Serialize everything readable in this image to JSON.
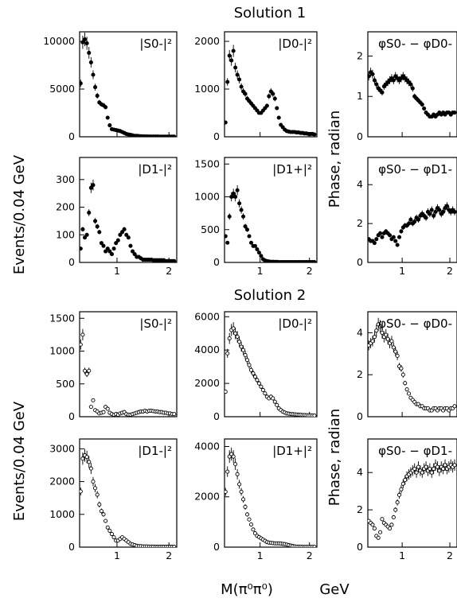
{
  "headings": {
    "solution1": "Solution 1",
    "solution2": "Solution 2",
    "ylabel_events": "Events/0.04 GeV",
    "ylabel_phase": "Phase, radian",
    "xlabel": "M(π⁰π⁰)",
    "xunit": "GeV"
  },
  "chart_data": [
    {
      "type": "scatter",
      "label": "|S0-|²",
      "solution": 1,
      "xlim": [
        0.28,
        2.15
      ],
      "ylim": [
        0,
        11000
      ],
      "yticks": [
        0,
        5000,
        10000
      ],
      "xticks": [
        1,
        2
      ],
      "marker": "filled",
      "x": [
        0.3,
        0.34,
        0.38,
        0.42,
        0.46,
        0.5,
        0.54,
        0.58,
        0.62,
        0.66,
        0.7,
        0.74,
        0.78,
        0.82,
        0.86,
        0.9,
        0.94,
        0.98,
        1.02,
        1.06,
        1.1,
        1.14,
        1.18,
        1.22,
        1.26,
        1.3,
        1.34,
        1.38,
        1.42,
        1.46,
        1.5,
        1.54,
        1.58,
        1.62,
        1.66,
        1.7,
        1.74,
        1.78,
        1.82,
        1.86,
        1.9,
        1.94,
        1.98,
        2.02,
        2.06,
        2.1
      ],
      "y": [
        5600,
        9900,
        10200,
        9800,
        8800,
        7800,
        6500,
        5200,
        4300,
        3600,
        3400,
        3300,
        3100,
        2000,
        1200,
        800,
        750,
        700,
        650,
        600,
        500,
        400,
        300,
        250,
        200,
        150,
        100,
        100,
        80,
        60,
        50,
        40,
        40,
        30,
        30,
        30,
        25,
        25,
        20,
        20,
        20,
        20,
        20,
        20,
        20,
        20
      ]
    },
    {
      "type": "scatter",
      "label": "|D0-|²",
      "solution": 1,
      "xlim": [
        0.28,
        2.15
      ],
      "ylim": [
        0,
        2200
      ],
      "yticks": [
        0,
        1000,
        2000
      ],
      "xticks": [
        1,
        2
      ],
      "marker": "filled",
      "x": [
        0.3,
        0.34,
        0.38,
        0.42,
        0.46,
        0.5,
        0.54,
        0.58,
        0.62,
        0.66,
        0.7,
        0.74,
        0.78,
        0.82,
        0.86,
        0.9,
        0.94,
        0.98,
        1.02,
        1.06,
        1.1,
        1.14,
        1.18,
        1.22,
        1.26,
        1.3,
        1.34,
        1.38,
        1.42,
        1.46,
        1.5,
        1.54,
        1.58,
        1.62,
        1.66,
        1.7,
        1.74,
        1.78,
        1.82,
        1.86,
        1.9,
        1.94,
        1.98,
        2.02,
        2.06,
        2.1
      ],
      "y": [
        300,
        1150,
        1700,
        1600,
        1800,
        1450,
        1300,
        1200,
        1050,
        950,
        900,
        800,
        750,
        700,
        650,
        600,
        550,
        500,
        500,
        550,
        600,
        650,
        850,
        950,
        900,
        800,
        600,
        400,
        250,
        200,
        150,
        120,
        110,
        100,
        100,
        100,
        90,
        90,
        80,
        80,
        70,
        70,
        60,
        60,
        60,
        50
      ]
    },
    {
      "type": "scatter",
      "label": "φS0- − φD0-",
      "solution": 1,
      "xlim": [
        0.28,
        2.15
      ],
      "ylim": [
        0,
        2.6
      ],
      "yticks": [
        0,
        1,
        2
      ],
      "xticks": [
        1,
        2
      ],
      "marker": "filled",
      "x": [
        0.3,
        0.34,
        0.38,
        0.42,
        0.46,
        0.5,
        0.54,
        0.58,
        0.62,
        0.66,
        0.7,
        0.74,
        0.78,
        0.82,
        0.86,
        0.9,
        0.94,
        0.98,
        1.02,
        1.06,
        1.1,
        1.14,
        1.18,
        1.22,
        1.26,
        1.3,
        1.34,
        1.38,
        1.42,
        1.46,
        1.5,
        1.54,
        1.58,
        1.62,
        1.66,
        1.7,
        1.74,
        1.78,
        1.82,
        1.86,
        1.9,
        1.94,
        1.98,
        2.02,
        2.06,
        2.1
      ],
      "y": [
        1.5,
        1.6,
        1.55,
        1.4,
        1.3,
        1.2,
        1.15,
        1.1,
        1.25,
        1.3,
        1.35,
        1.4,
        1.45,
        1.4,
        1.5,
        1.45,
        1.4,
        1.45,
        1.5,
        1.45,
        1.4,
        1.35,
        1.3,
        1.2,
        1.0,
        0.95,
        0.9,
        0.85,
        0.8,
        0.7,
        0.6,
        0.55,
        0.5,
        0.5,
        0.55,
        0.5,
        0.55,
        0.6,
        0.55,
        0.6,
        0.55,
        0.6,
        0.6,
        0.55,
        0.6,
        0.6
      ]
    },
    {
      "type": "scatter",
      "label": "|D1-|²",
      "solution": 1,
      "xlim": [
        0.28,
        2.15
      ],
      "ylim": [
        0,
        380
      ],
      "yticks": [
        0,
        100,
        200,
        300
      ],
      "xticks": [
        1,
        2
      ],
      "marker": "filled",
      "x": [
        0.3,
        0.34,
        0.38,
        0.42,
        0.46,
        0.5,
        0.54,
        0.58,
        0.62,
        0.66,
        0.7,
        0.74,
        0.78,
        0.82,
        0.86,
        0.9,
        0.94,
        0.98,
        1.02,
        1.06,
        1.1,
        1.14,
        1.18,
        1.22,
        1.26,
        1.3,
        1.34,
        1.38,
        1.42,
        1.46,
        1.5,
        1.54,
        1.58,
        1.62,
        1.66,
        1.7,
        1.74,
        1.78,
        1.82,
        1.86,
        1.9,
        1.94,
        1.98,
        2.02,
        2.06,
        2.1
      ],
      "y": [
        50,
        120,
        90,
        100,
        180,
        270,
        280,
        150,
        130,
        110,
        70,
        60,
        40,
        50,
        40,
        30,
        50,
        70,
        80,
        100,
        110,
        120,
        100,
        90,
        60,
        40,
        30,
        20,
        20,
        15,
        10,
        10,
        10,
        10,
        10,
        8,
        8,
        8,
        8,
        8,
        8,
        5,
        5,
        5,
        5,
        5
      ]
    },
    {
      "type": "scatter",
      "label": "|D1+|²",
      "solution": 1,
      "xlim": [
        0.28,
        2.15
      ],
      "ylim": [
        0,
        1600
      ],
      "yticks": [
        0,
        500,
        1000,
        1500
      ],
      "xticks": [
        1,
        2
      ],
      "marker": "filled",
      "x": [
        0.3,
        0.34,
        0.38,
        0.42,
        0.46,
        0.5,
        0.54,
        0.58,
        0.62,
        0.66,
        0.7,
        0.74,
        0.78,
        0.82,
        0.86,
        0.9,
        0.94,
        0.98,
        1.02,
        1.06,
        1.1,
        1.14,
        1.18,
        1.22,
        1.26,
        1.3,
        1.34,
        1.38,
        1.42,
        1.46,
        1.5,
        1.54,
        1.58,
        1.62,
        1.66,
        1.7,
        1.74,
        1.78,
        1.82,
        1.86,
        1.9,
        1.94,
        1.98,
        2.02,
        2.06,
        2.1
      ],
      "y": [
        400,
        300,
        700,
        1000,
        1050,
        1000,
        1100,
        900,
        800,
        700,
        550,
        500,
        400,
        300,
        250,
        250,
        200,
        150,
        100,
        50,
        30,
        20,
        15,
        10,
        10,
        8,
        8,
        5,
        5,
        5,
        5,
        5,
        5,
        5,
        5,
        5,
        5,
        5,
        5,
        5,
        5,
        5,
        5,
        5,
        5,
        5
      ]
    },
    {
      "type": "scatter",
      "label": "φS0- − φD1-",
      "solution": 1,
      "xlim": [
        0.28,
        2.15
      ],
      "ylim": [
        0,
        5.4
      ],
      "yticks": [
        0,
        2,
        4
      ],
      "xticks": [
        1,
        2
      ],
      "marker": "filled",
      "x": [
        0.3,
        0.34,
        0.38,
        0.42,
        0.46,
        0.5,
        0.54,
        0.58,
        0.62,
        0.66,
        0.7,
        0.74,
        0.78,
        0.82,
        0.86,
        0.9,
        0.94,
        0.98,
        1.02,
        1.06,
        1.1,
        1.14,
        1.18,
        1.22,
        1.26,
        1.3,
        1.34,
        1.38,
        1.42,
        1.46,
        1.5,
        1.54,
        1.58,
        1.62,
        1.66,
        1.7,
        1.74,
        1.78,
        1.82,
        1.86,
        1.9,
        1.94,
        1.98,
        2.02,
        2.06,
        2.1
      ],
      "y": [
        1.2,
        1.1,
        1.1,
        1.0,
        1.2,
        1.4,
        1.5,
        1.3,
        1.5,
        1.6,
        1.5,
        1.4,
        1.2,
        1.3,
        1.1,
        0.9,
        1.3,
        1.6,
        1.8,
        1.9,
        1.9,
        2.0,
        2.2,
        2.0,
        2.1,
        2.3,
        2.2,
        2.4,
        2.5,
        2.4,
        2.3,
        2.6,
        2.5,
        2.7,
        2.4,
        2.6,
        2.8,
        2.7,
        2.5,
        2.6,
        2.8,
        2.9,
        2.7,
        2.6,
        2.7,
        2.6
      ]
    },
    {
      "type": "scatter",
      "label": "|S0-|²",
      "solution": 2,
      "xlim": [
        0.28,
        2.15
      ],
      "ylim": [
        0,
        1600
      ],
      "yticks": [
        0,
        500,
        1000,
        1500
      ],
      "xticks": [
        1,
        2
      ],
      "marker": "open",
      "x": [
        0.3,
        0.34,
        0.38,
        0.42,
        0.46,
        0.5,
        0.54,
        0.58,
        0.62,
        0.66,
        0.7,
        0.74,
        0.78,
        0.82,
        0.86,
        0.9,
        0.94,
        0.98,
        1.02,
        1.06,
        1.1,
        1.14,
        1.18,
        1.22,
        1.26,
        1.3,
        1.34,
        1.38,
        1.42,
        1.46,
        1.5,
        1.54,
        1.58,
        1.62,
        1.66,
        1.7,
        1.74,
        1.78,
        1.82,
        1.86,
        1.9,
        1.94,
        1.98,
        2.02,
        2.06,
        2.1
      ],
      "y": [
        1100,
        1250,
        700,
        650,
        700,
        150,
        250,
        100,
        80,
        50,
        60,
        70,
        150,
        120,
        60,
        40,
        30,
        40,
        30,
        50,
        60,
        70,
        40,
        30,
        30,
        40,
        50,
        60,
        70,
        80,
        80,
        90,
        80,
        90,
        90,
        85,
        80,
        80,
        70,
        70,
        60,
        60,
        50,
        50,
        40,
        40
      ]
    },
    {
      "type": "scatter",
      "label": "|D0-|²",
      "solution": 2,
      "xlim": [
        0.28,
        2.15
      ],
      "ylim": [
        0,
        6300
      ],
      "yticks": [
        0,
        2000,
        4000,
        6000
      ],
      "xticks": [
        1,
        2
      ],
      "marker": "open",
      "x": [
        0.3,
        0.34,
        0.38,
        0.42,
        0.46,
        0.5,
        0.54,
        0.58,
        0.62,
        0.66,
        0.7,
        0.74,
        0.78,
        0.82,
        0.86,
        0.9,
        0.94,
        0.98,
        1.02,
        1.06,
        1.1,
        1.14,
        1.18,
        1.22,
        1.26,
        1.3,
        1.34,
        1.38,
        1.42,
        1.46,
        1.5,
        1.54,
        1.58,
        1.62,
        1.66,
        1.7,
        1.74,
        1.78,
        1.82,
        1.86,
        1.9,
        1.94,
        1.98,
        2.02,
        2.06,
        2.1
      ],
      "y": [
        1500,
        3800,
        4700,
        5200,
        5300,
        5000,
        4800,
        4500,
        4200,
        4000,
        3700,
        3400,
        3100,
        2800,
        2600,
        2400,
        2200,
        2000,
        1800,
        1600,
        1400,
        1200,
        1100,
        1200,
        1100,
        900,
        700,
        500,
        400,
        300,
        250,
        200,
        180,
        160,
        150,
        140,
        130,
        120,
        110,
        100,
        100,
        90,
        80,
        80,
        70,
        70
      ]
    },
    {
      "type": "scatter",
      "label": "φS0- − φD0-",
      "solution": 2,
      "xlim": [
        0.28,
        2.15
      ],
      "ylim": [
        0,
        5.0
      ],
      "yticks": [
        0,
        2,
        4
      ],
      "xticks": [
        1,
        2
      ],
      "marker": "open",
      "x": [
        0.3,
        0.34,
        0.38,
        0.42,
        0.46,
        0.5,
        0.54,
        0.58,
        0.62,
        0.66,
        0.7,
        0.74,
        0.78,
        0.82,
        0.86,
        0.9,
        0.94,
        0.98,
        1.02,
        1.06,
        1.1,
        1.14,
        1.18,
        1.22,
        1.26,
        1.3,
        1.34,
        1.38,
        1.42,
        1.46,
        1.5,
        1.54,
        1.58,
        1.62,
        1.66,
        1.7,
        1.74,
        1.78,
        1.82,
        1.86,
        1.9,
        1.94,
        1.98,
        2.02,
        2.06,
        2.1
      ],
      "y": [
        3.4,
        3.5,
        3.6,
        3.8,
        4.1,
        4.4,
        4.3,
        4.0,
        3.8,
        3.9,
        3.7,
        3.5,
        3.6,
        3.3,
        3.1,
        2.9,
        2.4,
        2.3,
        2.0,
        1.6,
        1.3,
        1.1,
        0.9,
        0.8,
        0.7,
        0.6,
        0.6,
        0.5,
        0.5,
        0.4,
        0.4,
        0.4,
        0.3,
        0.3,
        0.4,
        0.4,
        0.3,
        0.4,
        0.4,
        0.3,
        0.4,
        0.4,
        0.3,
        0.4,
        0.4,
        0.5
      ]
    },
    {
      "type": "scatter",
      "label": "|D1-|²",
      "solution": 2,
      "xlim": [
        0.28,
        2.15
      ],
      "ylim": [
        0,
        3300
      ],
      "yticks": [
        0,
        1000,
        2000,
        3000
      ],
      "xticks": [
        1,
        2
      ],
      "marker": "open",
      "x": [
        0.3,
        0.34,
        0.38,
        0.42,
        0.46,
        0.5,
        0.54,
        0.58,
        0.62,
        0.66,
        0.7,
        0.74,
        0.78,
        0.82,
        0.86,
        0.9,
        0.94,
        0.98,
        1.02,
        1.06,
        1.1,
        1.14,
        1.18,
        1.22,
        1.26,
        1.3,
        1.34,
        1.38,
        1.42,
        1.46,
        1.5,
        1.54,
        1.58,
        1.62,
        1.66,
        1.7,
        1.74,
        1.78,
        1.82,
        1.86,
        1.9,
        1.94,
        1.98,
        2.02,
        2.06,
        2.1
      ],
      "y": [
        1700,
        2700,
        2800,
        2750,
        2600,
        2400,
        2000,
        1800,
        1600,
        1300,
        1100,
        1000,
        800,
        600,
        500,
        400,
        300,
        200,
        200,
        250,
        300,
        250,
        200,
        150,
        100,
        80,
        60,
        40,
        30,
        30,
        20,
        20,
        20,
        15,
        15,
        15,
        10,
        10,
        10,
        10,
        10,
        10,
        10,
        10,
        10,
        10
      ]
    },
    {
      "type": "scatter",
      "label": "|D1+|²",
      "solution": 2,
      "xlim": [
        0.28,
        2.15
      ],
      "ylim": [
        0,
        4300
      ],
      "yticks": [
        0,
        2000,
        4000
      ],
      "xticks": [
        1,
        2
      ],
      "marker": "open",
      "x": [
        0.3,
        0.34,
        0.38,
        0.42,
        0.46,
        0.5,
        0.54,
        0.58,
        0.62,
        0.66,
        0.7,
        0.74,
        0.78,
        0.82,
        0.86,
        0.9,
        0.94,
        0.98,
        1.02,
        1.06,
        1.1,
        1.14,
        1.18,
        1.22,
        1.26,
        1.3,
        1.34,
        1.38,
        1.42,
        1.46,
        1.5,
        1.54,
        1.58,
        1.62,
        1.66,
        1.7,
        1.74,
        1.78,
        1.82,
        1.86,
        1.9,
        1.94,
        1.98,
        2.02,
        2.06,
        2.1
      ],
      "y": [
        2200,
        3000,
        3600,
        3700,
        3600,
        3300,
        2900,
        2500,
        2200,
        1900,
        1600,
        1300,
        1100,
        900,
        700,
        550,
        450,
        400,
        350,
        300,
        250,
        200,
        180,
        170,
        160,
        150,
        150,
        150,
        140,
        130,
        120,
        100,
        80,
        60,
        40,
        30,
        20,
        20,
        15,
        10,
        10,
        10,
        10,
        10,
        10,
        10
      ]
    },
    {
      "type": "scatter",
      "label": "φS0- − φD1-",
      "solution": 2,
      "xlim": [
        0.28,
        2.15
      ],
      "ylim": [
        0,
        5.8
      ],
      "yticks": [
        0,
        2,
        4
      ],
      "xticks": [
        1,
        2
      ],
      "marker": "open",
      "x": [
        0.3,
        0.34,
        0.38,
        0.42,
        0.46,
        0.5,
        0.54,
        0.58,
        0.62,
        0.66,
        0.7,
        0.74,
        0.78,
        0.82,
        0.86,
        0.9,
        0.94,
        0.98,
        1.02,
        1.06,
        1.1,
        1.14,
        1.18,
        1.22,
        1.26,
        1.3,
        1.34,
        1.38,
        1.42,
        1.46,
        1.5,
        1.54,
        1.58,
        1.62,
        1.66,
        1.7,
        1.74,
        1.78,
        1.82,
        1.86,
        1.9,
        1.94,
        1.98,
        2.02,
        2.06,
        2.1
      ],
      "y": [
        1.4,
        1.3,
        1.2,
        1.0,
        0.6,
        0.5,
        0.8,
        1.5,
        1.3,
        1.2,
        1.1,
        1.0,
        1.2,
        1.6,
        2.0,
        2.4,
        2.8,
        3.1,
        3.4,
        3.6,
        3.8,
        3.9,
        4.0,
        4.1,
        4.2,
        4.0,
        4.3,
        4.1,
        4.0,
        4.2,
        4.3,
        4.1,
        4.2,
        4.0,
        4.2,
        4.4,
        4.3,
        4.1,
        4.3,
        4.2,
        4.4,
        4.2,
        4.3,
        4.4,
        4.3,
        4.4
      ]
    }
  ]
}
